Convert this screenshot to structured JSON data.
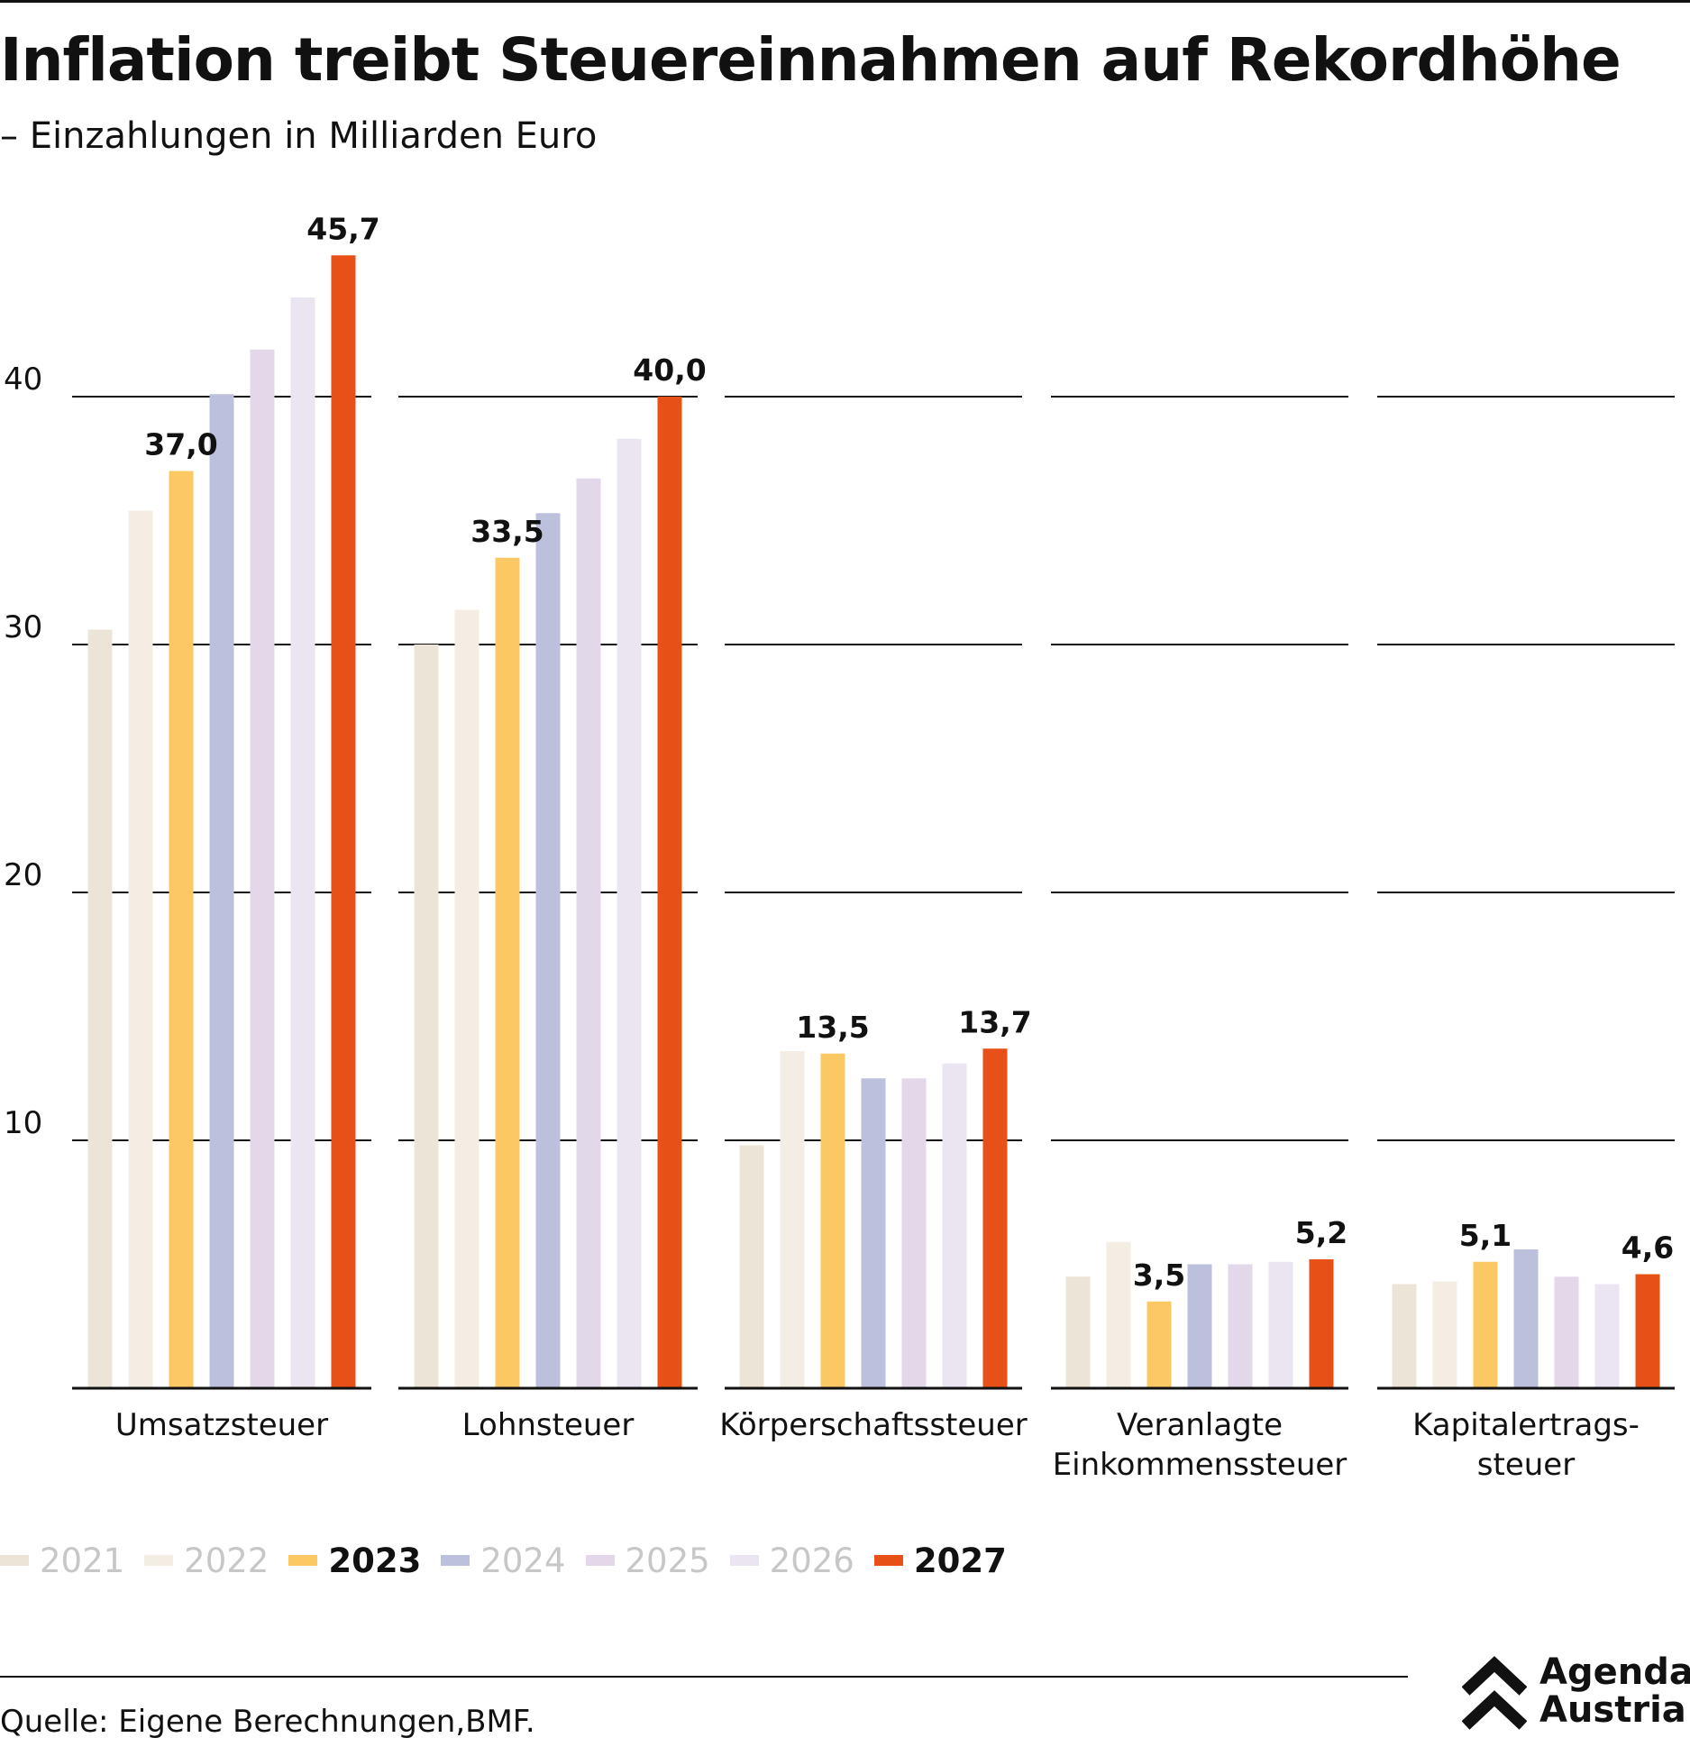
{
  "header": {
    "title": "Inflation treibt Steuereinnahmen auf Rekordhöhe",
    "subtitle": "– Einzahlungen in Milliarden Euro"
  },
  "chart_data": {
    "type": "bar",
    "categories": [
      "Umsatzsteuer",
      "Lohnsteuer",
      "Körperschaftssteuer",
      "Veranlagte Einkommenssteuer",
      "Kapitalertrags-steuer"
    ],
    "category_lines": [
      [
        "Umsatzsteuer"
      ],
      [
        "Lohnsteuer"
      ],
      [
        "Körperschaftssteuer"
      ],
      [
        "Veranlagte",
        "Einkommenssteuer"
      ],
      [
        "Kapitalertrags-",
        "steuer"
      ]
    ],
    "series": [
      {
        "name": "2021",
        "color": "#ede4d8",
        "values": [
          30.6,
          30.0,
          9.8,
          4.5,
          4.2
        ]
      },
      {
        "name": "2022",
        "color": "#f3ede3",
        "values": [
          35.4,
          31.4,
          13.6,
          5.9,
          4.3
        ]
      },
      {
        "name": "2023",
        "color": "#fbc863",
        "values": [
          37.0,
          33.5,
          13.5,
          3.5,
          5.1
        ]
      },
      {
        "name": "2024",
        "color": "#bdc0dd",
        "values": [
          40.1,
          35.3,
          12.5,
          5.0,
          5.6
        ]
      },
      {
        "name": "2025",
        "color": "#e3d8e9",
        "values": [
          41.9,
          36.7,
          12.5,
          5.0,
          4.5
        ]
      },
      {
        "name": "2026",
        "color": "#ebe4f1",
        "values": [
          44.0,
          38.3,
          13.1,
          5.1,
          4.2
        ]
      },
      {
        "name": "2027",
        "color": "#e75118",
        "values": [
          45.7,
          40.0,
          13.7,
          5.2,
          4.6
        ]
      }
    ],
    "labeled_series": [
      "2023",
      "2027"
    ],
    "data_labels": {
      "2023": [
        "37,0",
        "33,5",
        "13,5",
        "3,5",
        "5,1"
      ],
      "2027": [
        "45,7",
        "40,0",
        "13,7",
        "5,2",
        "4,6"
      ]
    },
    "legend": [
      {
        "label": "2021",
        "color": "#ede4d8",
        "emphasis": false
      },
      {
        "label": "2022",
        "color": "#f3ede3",
        "emphasis": false
      },
      {
        "label": "2023",
        "color": "#fbc863",
        "emphasis": true
      },
      {
        "label": "2024",
        "color": "#bdc0dd",
        "emphasis": false
      },
      {
        "label": "2025",
        "color": "#e3d8e9",
        "emphasis": false
      },
      {
        "label": "2026",
        "color": "#ebe4f1",
        "emphasis": false
      },
      {
        "label": "2027",
        "color": "#e75118",
        "emphasis": true
      }
    ],
    "yticks": [
      10,
      20,
      30,
      40
    ],
    "ytick_labels": [
      "10",
      "20",
      "30",
      "40"
    ],
    "ylim": [
      0,
      46
    ],
    "grid": true,
    "legend_position": "bottom-left",
    "xlabel": "",
    "ylabel": ""
  },
  "footer": {
    "source": "Quelle: Eigene Berechnungen,BMF.",
    "logo_line1": "Agenda",
    "logo_line2": "Austria"
  }
}
